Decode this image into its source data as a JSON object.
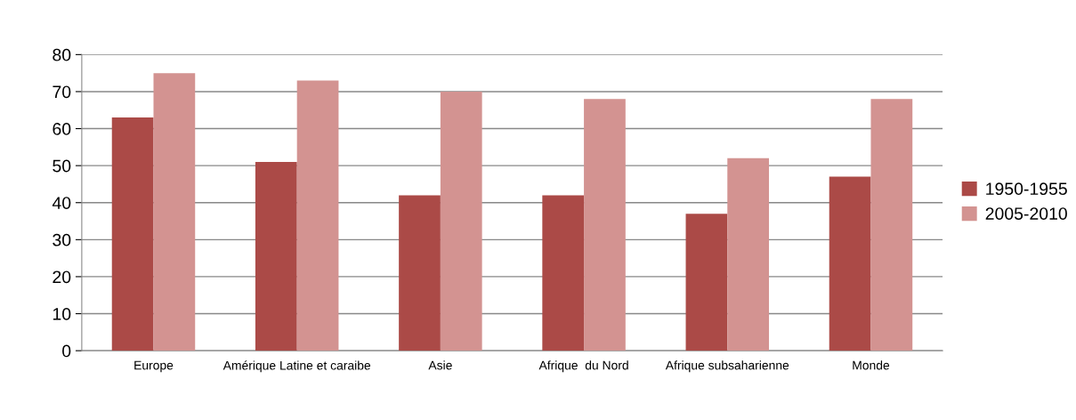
{
  "chart_data": {
    "type": "bar",
    "categories": [
      "Europe",
      "Amérique Latine et caraibe",
      "Asie",
      "Afrique  du Nord",
      "Afrique subsaharienne",
      "Monde"
    ],
    "series": [
      {
        "name": "1950-1955",
        "color": "#ab4a47",
        "values": [
          63,
          51,
          42,
          42,
          37,
          47
        ]
      },
      {
        "name": "2005-2010",
        "color": "#d39391",
        "values": [
          75,
          73,
          70,
          68,
          52,
          68
        ]
      }
    ],
    "ylim": [
      0,
      80
    ],
    "yticks": [
      0,
      10,
      20,
      30,
      40,
      50,
      60,
      70,
      80
    ],
    "grid": "y",
    "legend": "right"
  }
}
